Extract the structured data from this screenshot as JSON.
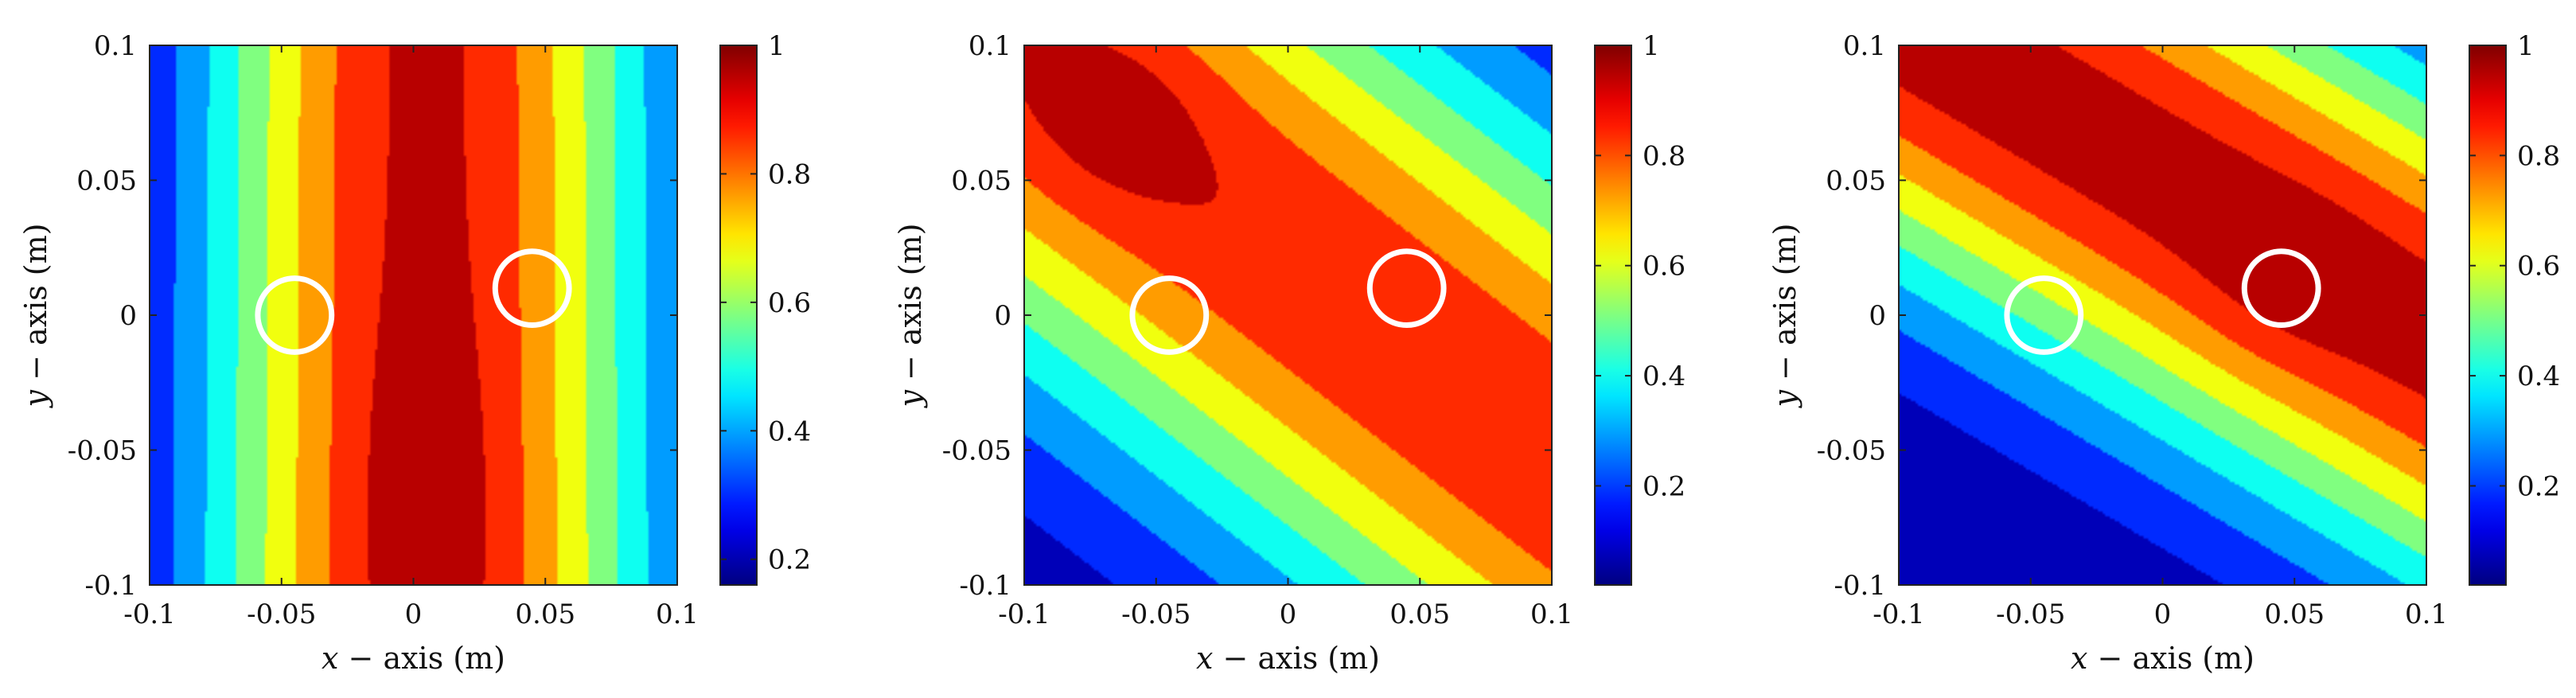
{
  "chart_data": [
    {
      "type": "heatmap",
      "xlabel_var": "x",
      "xlabel_rest": " − axis (m)",
      "ylabel_var": "y",
      "ylabel_rest": " − axis (m)",
      "xlim": [
        -0.1,
        0.1
      ],
      "ylim": [
        -0.1,
        0.1
      ],
      "x_ticks": [
        -0.1,
        -0.05,
        0,
        0.05,
        0.1
      ],
      "y_ticks": [
        -0.1,
        -0.05,
        0,
        0.05,
        0.1
      ],
      "x_tick_labels": [
        "-0.1",
        "-0.05",
        "0",
        "0.05",
        "0.1"
      ],
      "y_tick_labels": [
        "-0.1",
        "-0.05",
        "0",
        "0.05",
        "0.1"
      ],
      "colorbar": {
        "range": [
          0.16,
          1.0
        ],
        "ticks": [
          0.2,
          0.4,
          0.6,
          0.8,
          1
        ],
        "tick_labels": [
          "0.2",
          "0.4",
          "0.6",
          "0.8",
          "1"
        ]
      },
      "field": {
        "kind": "vertical_ridge",
        "center_x": 0.005,
        "peak": 0.93,
        "width": 0.068,
        "y_slope": -0.8
      },
      "markers": [
        {
          "x": -0.045,
          "y": 0.0,
          "radius": 0.014
        },
        {
          "x": 0.045,
          "y": 0.01,
          "radius": 0.014
        }
      ]
    },
    {
      "type": "heatmap",
      "xlabel_var": "x",
      "xlabel_rest": " − axis (m)",
      "ylabel_var": "y",
      "ylabel_rest": " − axis (m)",
      "xlim": [
        -0.1,
        0.1
      ],
      "ylim": [
        -0.1,
        0.1
      ],
      "x_ticks": [
        -0.1,
        -0.05,
        0,
        0.05,
        0.1
      ],
      "y_ticks": [
        -0.1,
        -0.05,
        0,
        0.05,
        0.1
      ],
      "x_tick_labels": [
        "-0.1",
        "-0.05",
        "0",
        "0.05",
        "0.1"
      ],
      "y_tick_labels": [
        "-0.1",
        "-0.05",
        "0",
        "0.05",
        "0.1"
      ],
      "colorbar": {
        "range": [
          0.02,
          1.0
        ],
        "ticks": [
          0.2,
          0.4,
          0.6,
          0.8,
          1
        ],
        "tick_labels": [
          "0.2",
          "0.4",
          "0.6",
          "0.8",
          "1"
        ]
      },
      "field": {
        "kind": "diagonal_band",
        "direction": [
          0.6,
          0.8
        ],
        "band_center": 0.018,
        "band_width": 0.07,
        "peak": 0.88,
        "peak_point": [
          -0.065,
          0.075
        ],
        "peak_boost": 0.08
      },
      "markers": [
        {
          "x": -0.045,
          "y": 0.0,
          "radius": 0.014
        },
        {
          "x": 0.045,
          "y": 0.01,
          "radius": 0.014
        }
      ]
    },
    {
      "type": "heatmap",
      "xlabel_var": "x",
      "xlabel_rest": " − axis (m)",
      "ylabel_var": "y",
      "ylabel_rest": " − axis (m)",
      "xlim": [
        -0.1,
        0.1
      ],
      "ylim": [
        -0.1,
        0.1
      ],
      "x_ticks": [
        -0.1,
        -0.05,
        0,
        0.05,
        0.1
      ],
      "y_ticks": [
        -0.1,
        -0.05,
        0,
        0.05,
        0.1
      ],
      "x_tick_labels": [
        "-0.1",
        "-0.05",
        "0",
        "0.05",
        "0.1"
      ],
      "y_tick_labels": [
        "-0.1",
        "-0.05",
        "0",
        "0.05",
        "0.1"
      ],
      "colorbar": {
        "range": [
          0.02,
          1.0
        ],
        "ticks": [
          0.2,
          0.4,
          0.6,
          0.8,
          1
        ],
        "tick_labels": [
          "0.2",
          "0.4",
          "0.6",
          "0.8",
          "1"
        ]
      },
      "field": {
        "kind": "diagonal_band",
        "direction": [
          0.5,
          0.866
        ],
        "band_center": 0.045,
        "band_width": 0.06,
        "peak": 0.95,
        "peak_point": [
          0.045,
          0.01
        ],
        "peak_boost": 0.04
      },
      "markers": [
        {
          "x": -0.045,
          "y": 0.0,
          "radius": 0.014
        },
        {
          "x": 0.045,
          "y": 0.01,
          "radius": 0.014
        }
      ]
    }
  ]
}
